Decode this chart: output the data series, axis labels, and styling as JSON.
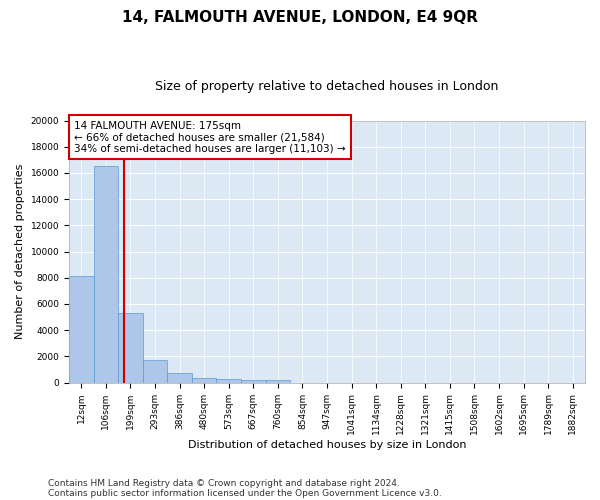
{
  "title": "14, FALMOUTH AVENUE, LONDON, E4 9QR",
  "subtitle": "Size of property relative to detached houses in London",
  "xlabel": "Distribution of detached houses by size in London",
  "ylabel": "Number of detached properties",
  "categories": [
    "12sqm",
    "106sqm",
    "199sqm",
    "293sqm",
    "386sqm",
    "480sqm",
    "573sqm",
    "667sqm",
    "760sqm",
    "854sqm",
    "947sqm",
    "1041sqm",
    "1134sqm",
    "1228sqm",
    "1321sqm",
    "1415sqm",
    "1508sqm",
    "1602sqm",
    "1695sqm",
    "1789sqm",
    "1882sqm"
  ],
  "values": [
    8100,
    16500,
    5300,
    1750,
    700,
    350,
    280,
    200,
    200,
    0,
    0,
    0,
    0,
    0,
    0,
    0,
    0,
    0,
    0,
    0,
    0
  ],
  "bar_color": "#aec6e8",
  "bar_edge_color": "#5b9bd5",
  "property_line_color": "#cc0000",
  "annotation_text": "14 FALMOUTH AVENUE: 175sqm\n← 66% of detached houses are smaller (21,584)\n34% of semi-detached houses are larger (11,103) →",
  "annotation_box_color": "#ffffff",
  "annotation_box_edge": "#cc0000",
  "ylim": [
    0,
    20000
  ],
  "yticks": [
    0,
    2000,
    4000,
    6000,
    8000,
    10000,
    12000,
    14000,
    16000,
    18000,
    20000
  ],
  "background_color": "#dce9f5",
  "footer1": "Contains HM Land Registry data © Crown copyright and database right 2024.",
  "footer2": "Contains public sector information licensed under the Open Government Licence v3.0.",
  "title_fontsize": 11,
  "subtitle_fontsize": 9,
  "axis_label_fontsize": 8,
  "tick_fontsize": 6.5,
  "footer_fontsize": 6.5,
  "annot_fontsize": 7.5
}
